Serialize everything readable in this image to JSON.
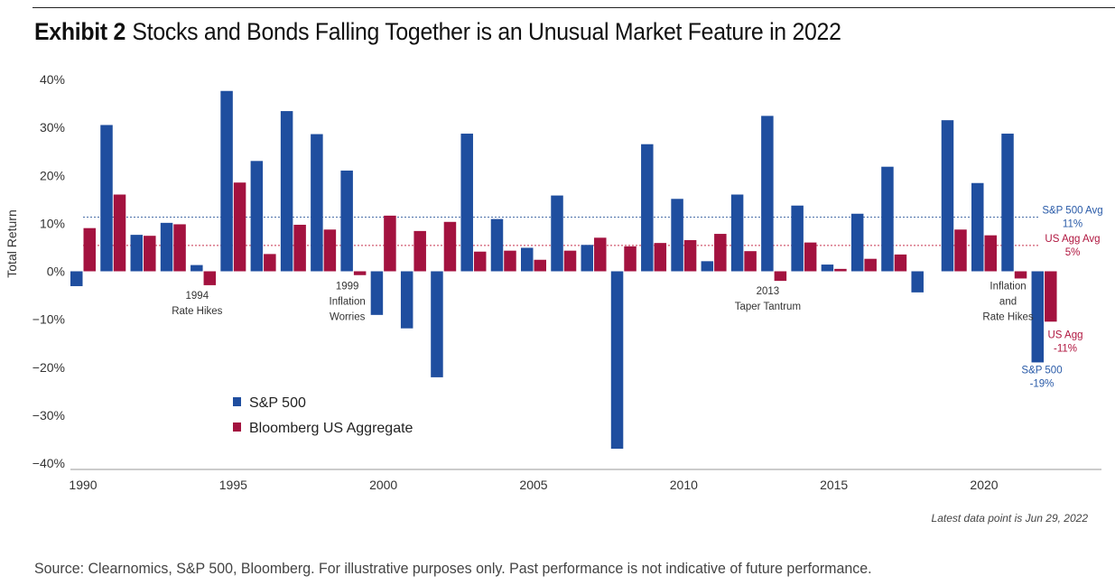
{
  "header": {
    "exhibit": "Exhibit 2",
    "title": "Stocks and Bonds Falling Together is an Unusual Market Feature in 2022"
  },
  "footnote": "Latest data point is Jun 29, 2022",
  "source": "Source: Clearnomics, S&P 500, Bloomberg. For illustrative purposes only. Past performance is not indicative of future performance.",
  "colors": {
    "sp500": "#1f4e9f",
    "agg": "#a3123f",
    "sp500_line": "#4a6fa8",
    "agg_line": "#c8334f"
  },
  "chart_data": {
    "type": "bar",
    "ylabel": "Total Return",
    "ylim": [
      -40,
      40
    ],
    "yticks": [
      40,
      30,
      20,
      10,
      0,
      -10,
      -20,
      -30,
      -40
    ],
    "ytick_labels": [
      "40%",
      "30%",
      "20%",
      "10%",
      "0%",
      "−10%",
      "−20%",
      "−30%",
      "−40%"
    ],
    "xticks": [
      1990,
      1995,
      2000,
      2005,
      2010,
      2015,
      2020
    ],
    "x": [
      1990,
      1991,
      1992,
      1993,
      1994,
      1995,
      1996,
      1997,
      1998,
      1999,
      2000,
      2001,
      2002,
      2003,
      2004,
      2005,
      2006,
      2007,
      2008,
      2009,
      2010,
      2011,
      2012,
      2013,
      2014,
      2015,
      2016,
      2017,
      2018,
      2019,
      2020,
      2021,
      2022
    ],
    "series": [
      {
        "name": "S&P 500",
        "color": "#1f4e9f",
        "values": [
          -3.1,
          30.5,
          7.6,
          10.1,
          1.3,
          37.6,
          23.0,
          33.4,
          28.6,
          21.0,
          -9.1,
          -11.9,
          -22.1,
          28.7,
          10.9,
          4.9,
          15.8,
          5.5,
          -37.0,
          26.5,
          15.1,
          2.1,
          16.0,
          32.4,
          13.7,
          1.4,
          12.0,
          21.8,
          -4.4,
          31.5,
          18.4,
          28.7,
          -19.0
        ]
      },
      {
        "name": "Bloomberg US Aggregate",
        "color": "#a3123f",
        "values": [
          9.0,
          16.0,
          7.4,
          9.8,
          -2.9,
          18.5,
          3.6,
          9.7,
          8.7,
          -0.8,
          11.6,
          8.4,
          10.3,
          4.1,
          4.3,
          2.4,
          4.3,
          7.0,
          5.2,
          5.9,
          6.5,
          7.8,
          4.2,
          -2.0,
          6.0,
          0.5,
          2.6,
          3.5,
          0.0,
          8.7,
          7.5,
          -1.5,
          -10.5
        ]
      }
    ],
    "averages": [
      {
        "label": "S&P 500 Avg",
        "value_label": "11%",
        "value": 11.3
      },
      {
        "label": "US Agg Avg",
        "value_label": "5%",
        "value": 5.4
      }
    ],
    "annotations": [
      {
        "lines": [
          "1994",
          "Rate Hikes"
        ],
        "x": 1994,
        "y": -3.5
      },
      {
        "lines": [
          "1999",
          "Inflation",
          "Worries"
        ],
        "x": 1999,
        "y": -1.5
      },
      {
        "lines": [
          "2013",
          "Taper Tantrum"
        ],
        "x": 2013,
        "y": -2.5
      },
      {
        "lines": [
          "Inflation",
          "and",
          "Rate Hikes"
        ],
        "x": 2021,
        "y": -1.5
      }
    ],
    "end_labels": [
      {
        "lines": [
          "US Agg",
          "-11%"
        ],
        "series": "agg"
      },
      {
        "lines": [
          "S&P 500",
          "-19%"
        ],
        "series": "sp500"
      }
    ],
    "legend_position": "bottom-left",
    "grid": false
  }
}
